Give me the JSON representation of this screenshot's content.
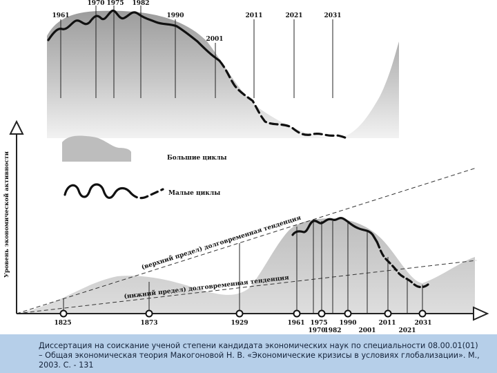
{
  "top_chart": {
    "years": [
      "1961",
      "1970",
      "1975",
      "1982",
      "1990",
      "2001",
      "2011",
      "2021",
      "2031"
    ]
  },
  "legend": {
    "big_cycles": "Большие циклы",
    "small_cycles": "Малые циклы"
  },
  "bottom_chart": {
    "y_axis_label": "Уровень экономической активности",
    "upper_trend_label": "(верхний предел) долговременная тенденция",
    "lower_trend_label": "(нижний предел) долговременная тенденция",
    "years": [
      "1825",
      "1873",
      "1929",
      "1961",
      "1975",
      "1990",
      "2001",
      "2011",
      "2021",
      "2031"
    ],
    "years_lower_row": [
      "1970",
      "1982"
    ]
  },
  "footer": {
    "caption": "Диссертация на соискание ученой степени кандидата экономических наук по специальности 08.00.01(01) – Общая экономическая теория Макогоновой Н. В. «Экономические кризисы в условиях глобализации». М., 2003. С. - 131"
  }
}
